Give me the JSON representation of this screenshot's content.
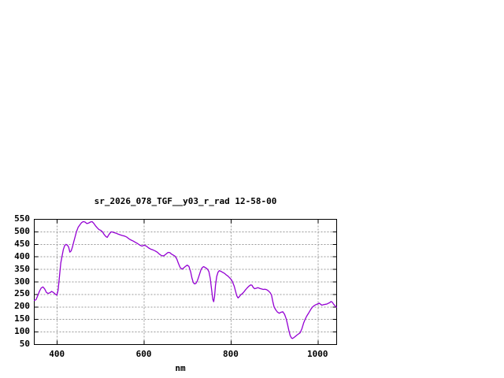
{
  "window": {
    "background": "#ffffff"
  },
  "chart_data": {
    "type": "line",
    "title": "sr_2026_078_TGF__y03_r_rad 12-58-00",
    "xlabel": "nm",
    "ylabel": "",
    "x_range": [
      347,
      1043
    ],
    "y_range": [
      50,
      550
    ],
    "x_ticks": [
      400,
      600,
      800,
      1000
    ],
    "y_ticks": [
      50,
      100,
      150,
      200,
      250,
      300,
      350,
      400,
      450,
      500,
      550
    ],
    "grid": true,
    "legend_position": "none",
    "colors": {
      "line": "#9400d3",
      "grid": "#9a9a9a",
      "border": "#000000",
      "text": "#000000",
      "background": "#ffffff"
    },
    "series": [
      {
        "x": [
          347,
          351,
          355,
          359,
          363,
          367,
          371,
          375,
          379,
          383,
          387,
          391,
          395,
          399,
          402,
          405,
          408,
          411,
          414,
          417,
          420,
          423,
          426,
          429,
          432,
          435,
          438,
          441,
          444,
          448,
          452,
          456,
          460,
          464,
          468,
          472,
          476,
          480,
          484,
          488,
          492,
          496,
          500,
          504,
          508,
          512,
          515,
          518,
          521,
          524,
          528,
          532,
          536,
          540,
          545,
          550,
          555,
          560,
          565,
          570,
          575,
          580,
          585,
          590,
          595,
          600,
          605,
          610,
          615,
          620,
          625,
          630,
          635,
          640,
          645,
          650,
          655,
          659,
          663,
          667,
          671,
          675,
          679,
          683,
          687,
          691,
          695,
          699,
          703,
          707,
          710,
          713,
          716,
          719,
          722,
          725,
          728,
          731,
          734,
          737,
          740,
          743,
          746,
          749,
          752,
          755,
          758,
          760,
          762,
          764,
          767,
          770,
          773,
          777,
          781,
          785,
          789,
          793,
          797,
          801,
          804,
          807,
          810,
          813,
          816,
          819,
          822,
          825,
          829,
          833,
          837,
          841,
          845,
          848,
          851,
          854,
          858,
          862,
          866,
          870,
          874,
          878,
          882,
          886,
          890,
          893,
          896,
          899,
          903,
          907,
          911,
          915,
          919,
          923,
          927,
          930,
          933,
          936,
          939,
          941,
          944,
          947,
          951,
          955,
          959,
          963,
          967,
          971,
          975,
          979,
          983,
          987,
          991,
          995,
          999,
          1003,
          1006,
          1009,
          1012,
          1015,
          1018,
          1021,
          1024,
          1027,
          1030,
          1033,
          1036,
          1039,
          1043
        ],
        "y": [
          226,
          229,
          245,
          263,
          276,
          280,
          272,
          258,
          254,
          257,
          262,
          258,
          252,
          247,
          268,
          322,
          375,
          403,
          430,
          445,
          450,
          447,
          440,
          419,
          424,
          440,
          461,
          480,
          500,
          518,
          528,
          537,
          541,
          539,
          533,
          535,
          539,
          541,
          534,
          524,
          516,
          509,
          506,
          500,
          489,
          481,
          478,
          487,
          494,
          500,
          499,
          496,
          494,
          491,
          488,
          485,
          483,
          479,
          472,
          467,
          463,
          458,
          453,
          447,
          443,
          447,
          443,
          436,
          431,
          428,
          424,
          419,
          411,
          405,
          404,
          411,
          418,
          417,
          411,
          407,
          403,
          392,
          373,
          357,
          351,
          356,
          362,
          367,
          362,
          340,
          315,
          298,
          292,
          294,
          303,
          318,
          334,
          350,
          358,
          361,
          358,
          355,
          350,
          341,
          315,
          272,
          230,
          221,
          242,
          285,
          322,
          339,
          345,
          342,
          338,
          334,
          328,
          323,
          316,
          308,
          297,
          284,
          265,
          245,
          236,
          241,
          248,
          252,
          259,
          268,
          276,
          283,
          288,
          287,
          278,
          273,
          275,
          277,
          274,
          272,
          270,
          271,
          269,
          264,
          257,
          248,
          222,
          200,
          188,
          179,
          175,
          179,
          181,
          171,
          152,
          130,
          106,
          86,
          76,
          74,
          77,
          81,
          87,
          92,
          97,
          113,
          136,
          153,
          166,
          177,
          189,
          199,
          205,
          209,
          212,
          215,
          211,
          207,
          209,
          210,
          211,
          212,
          215,
          217,
          222,
          219,
          211,
          205,
          199
        ]
      }
    ]
  }
}
